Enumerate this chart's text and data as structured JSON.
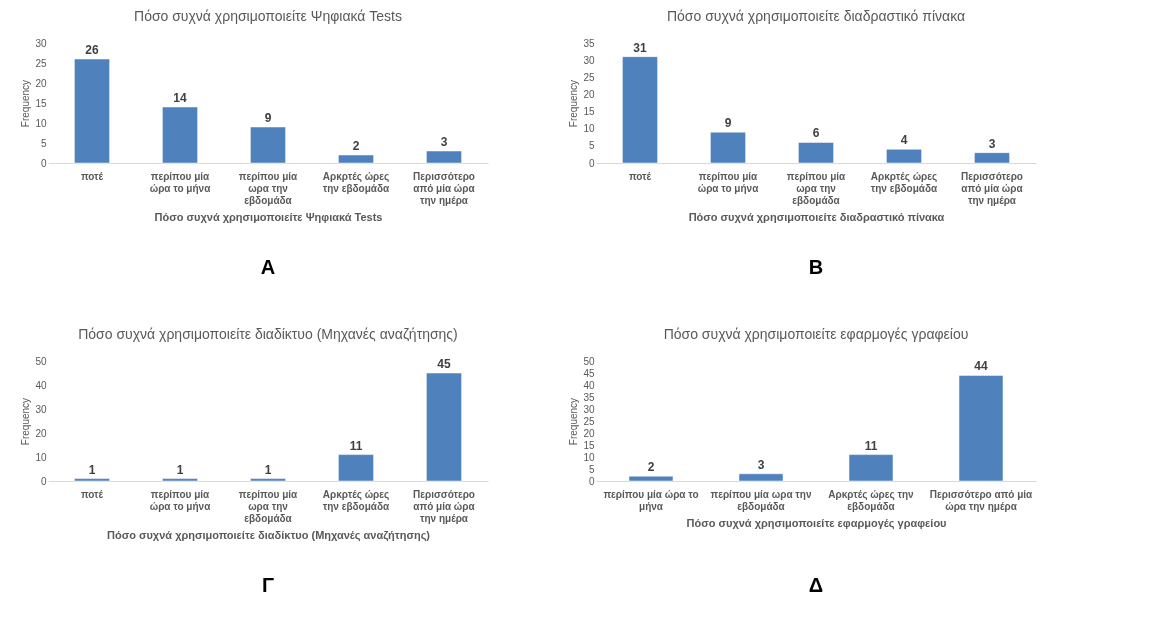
{
  "chart_data": [
    {
      "type": "bar",
      "title": "Πόσο συχνά χρησιμοποιείτε Ψηφιακά Tests",
      "xlabel": "Πόσο συχνά χρησιμοποιείτε Ψηφιακά Tests",
      "ylabel": "Frequency",
      "categories": [
        "ποτέ",
        "περίπου μία ώρα το μήνα",
        "περίπου μία ωρα την εβδομάδα",
        "Αρκρτές ώρες την εβδομάδα",
        "Περισσότερο από μία ώρα την ημέρα"
      ],
      "values": [
        26,
        14,
        9,
        2,
        3
      ],
      "color": "#4f81bd",
      "ylim": [
        0,
        30
      ],
      "yticks": [
        0,
        5,
        10,
        15,
        20,
        25,
        30
      ],
      "grid": false,
      "data_labels": true,
      "annotations": [
        "A"
      ]
    },
    {
      "type": "bar",
      "title": "Πόσο συχνά χρησιμοποιείτε διαδραστικό πίνακα",
      "xlabel": "Πόσο συχνά χρησιμοποιείτε διαδραστικό πίνακα",
      "ylabel": "Frequency",
      "categories": [
        "ποτέ",
        "περίπου μία ώρα το μήνα",
        "περίπου μία ωρα την εβδομάδα",
        "Αρκρτές ώρες την εβδομάδα",
        "Περισσότερο από μία ώρα την ημέρα"
      ],
      "values": [
        31,
        9,
        6,
        4,
        3
      ],
      "color": "#4f81bd",
      "ylim": [
        0,
        35
      ],
      "yticks": [
        0,
        5,
        10,
        15,
        20,
        25,
        30,
        35
      ],
      "grid": false,
      "data_labels": true,
      "annotations": [
        "B"
      ]
    },
    {
      "type": "bar",
      "title": "Πόσο συχνά χρησιμοποιείτε διαδίκτυο (Μηχανές αναζήτησης)",
      "xlabel": "Πόσο συχνά χρησιμοποιείτε διαδίκτυο (Μηχανές αναζήτησης)",
      "ylabel": "Frequency",
      "categories": [
        "ποτέ",
        "περίπου μία ώρα το μήνα",
        "περίπου μία ωρα την εβδομάδα",
        "Αρκρτές ώρες την εβδομάδα",
        "Περισσότερο από μία ώρα την ημέρα"
      ],
      "values": [
        1,
        1,
        1,
        11,
        45
      ],
      "color": "#4f81bd",
      "ylim": [
        0,
        50
      ],
      "yticks": [
        0,
        10,
        20,
        30,
        40,
        50
      ],
      "grid": false,
      "data_labels": true,
      "annotations": [
        "Γ"
      ]
    },
    {
      "type": "bar",
      "title": "Πόσο συχνά χρησιμοποιείτε εφαρμογές γραφείου",
      "xlabel": "Πόσο συχνά χρησιμοποιείτε εφαρμογές γραφείου",
      "ylabel": "Frequency",
      "categories": [
        "περίπου μία ώρα το μήνα",
        "περίπου μία ωρα την εβδομάδα",
        "Αρκρτές ώρες την εβδομάδα",
        "Περισσότερο από μία ώρα την ημέρα"
      ],
      "values": [
        2,
        3,
        11,
        44
      ],
      "color": "#4f81bd",
      "ylim": [
        0,
        50
      ],
      "yticks": [
        0,
        5,
        10,
        15,
        20,
        25,
        30,
        35,
        40,
        45,
        50
      ],
      "grid": false,
      "data_labels": true,
      "annotations": [
        "Δ"
      ]
    }
  ]
}
